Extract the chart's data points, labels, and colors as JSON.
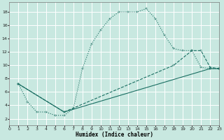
{
  "xlabel": "Humidex (Indice chaleur)",
  "background_color": "#c8e8e0",
  "grid_color": "#ffffff",
  "line_color": "#1a6e62",
  "xlim": [
    0,
    23
  ],
  "ylim": [
    1,
    19.5
  ],
  "yticks": [
    2,
    4,
    6,
    8,
    10,
    12,
    14,
    16,
    18
  ],
  "xticks": [
    0,
    1,
    2,
    3,
    4,
    5,
    6,
    7,
    8,
    9,
    10,
    11,
    12,
    13,
    14,
    15,
    16,
    17,
    18,
    19,
    20,
    21,
    22,
    23
  ],
  "curve1_x": [
    1,
    2,
    3,
    4,
    5,
    6,
    7,
    8,
    9,
    10,
    11,
    12,
    13,
    14,
    15,
    16,
    17,
    18,
    19,
    20,
    21,
    22,
    23
  ],
  "curve1_y": [
    7.2,
    4.5,
    3.0,
    3.0,
    2.5,
    2.5,
    3.5,
    9.5,
    13.2,
    15.3,
    17.0,
    18.0,
    18.0,
    18.0,
    18.5,
    17.0,
    14.5,
    12.5,
    12.2,
    12.2,
    9.7,
    9.5,
    9.5
  ],
  "curve2_x": [
    1,
    6,
    18,
    20,
    21,
    22,
    23
  ],
  "curve2_y": [
    7.2,
    3.0,
    10.0,
    12.2,
    12.2,
    9.7,
    9.5
  ],
  "curve3_x": [
    1,
    6,
    22,
    23
  ],
  "curve3_y": [
    7.2,
    3.0,
    9.5,
    9.5
  ]
}
